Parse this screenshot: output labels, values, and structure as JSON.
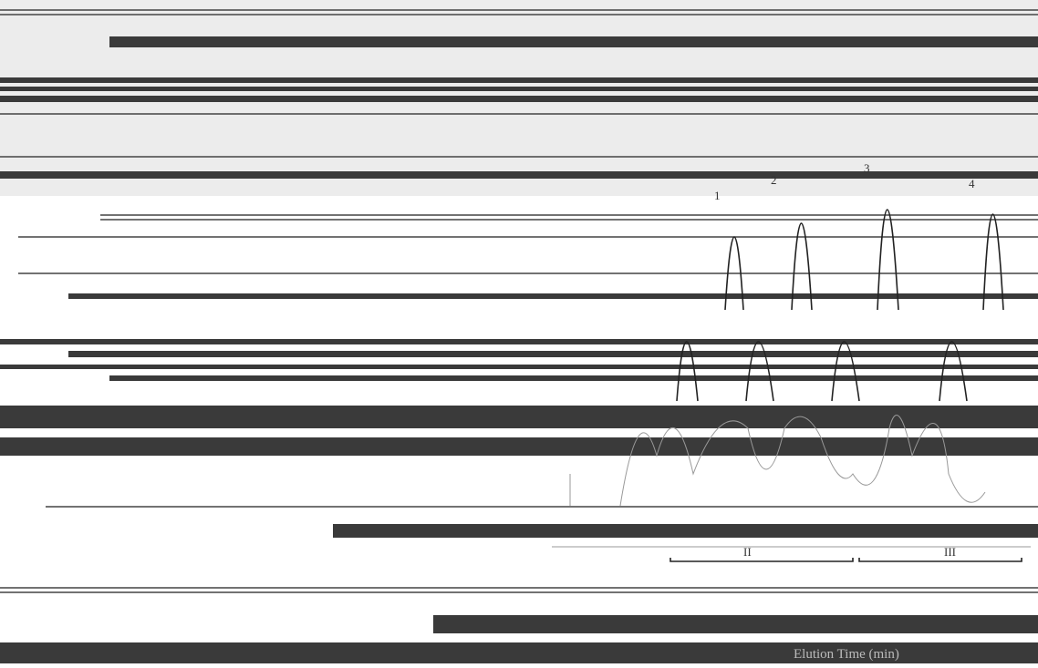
{
  "peak_labels": [
    "1",
    "2",
    "3",
    "4"
  ],
  "brackets": [
    "II",
    "III"
  ],
  "axis_label": "Elution Time (min)"
}
